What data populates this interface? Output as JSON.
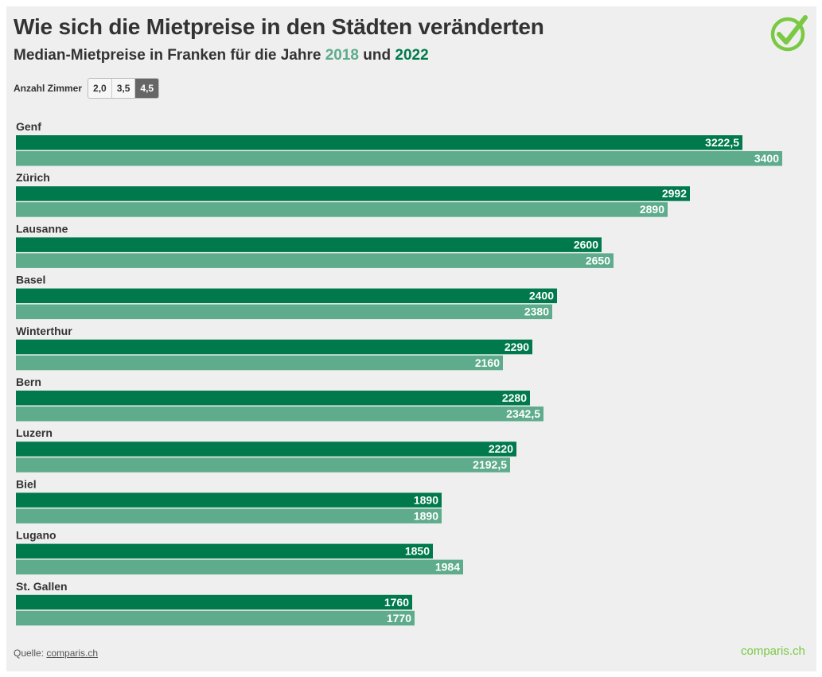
{
  "header": {
    "title": "Wie sich die Mietpreise in den Städten veränderten",
    "subtitle_prefix": "Median-Mietpreise in Franken für die Jahre",
    "year_a": "2018",
    "subtitle_join": "und",
    "year_b": "2022"
  },
  "filter": {
    "label": "Anzahl Zimmer",
    "options": [
      "2,0",
      "3,5",
      "4,5"
    ],
    "selected": "4,5"
  },
  "footer": {
    "source_prefix": "Quelle:",
    "source_link": "comparis.ch",
    "brand_pre": "c",
    "brand_o": "o",
    "brand_post": "mparis.ch"
  },
  "colors": {
    "series_2022": "#007a4c",
    "series_2018": "#5eac8c",
    "accent": "#7ac943"
  },
  "chart_data": {
    "type": "bar",
    "orientation": "horizontal",
    "title": "Wie sich die Mietpreise in den Städten veränderten",
    "subtitle": "Median-Mietpreise in Franken für die Jahre 2018 und 2022",
    "xlabel": "",
    "ylabel": "",
    "xlim": [
      0,
      3400
    ],
    "grid": false,
    "categories": [
      "Genf",
      "Zürich",
      "Lausanne",
      "Basel",
      "Winterthur",
      "Bern",
      "Luzern",
      "Biel",
      "Lugano",
      "St. Gallen"
    ],
    "series": [
      {
        "name": "2022",
        "color": "#007a4c",
        "values": [
          3222.5,
          2992,
          2600,
          2400,
          2290,
          2280,
          2220,
          1890,
          1850,
          1760
        ],
        "labels": [
          "3222,5",
          "2992",
          "2600",
          "2400",
          "2290",
          "2280",
          "2220",
          "1890",
          "1850",
          "1760"
        ]
      },
      {
        "name": "2018",
        "color": "#5eac8c",
        "values": [
          3400,
          2890,
          2650,
          2380,
          2160,
          2342.5,
          2192.5,
          1890,
          1984,
          1770
        ],
        "labels": [
          "3400",
          "2890",
          "2650",
          "2380",
          "2160",
          "2342,5",
          "2192,5",
          "1890",
          "1984",
          "1770"
        ]
      }
    ]
  }
}
